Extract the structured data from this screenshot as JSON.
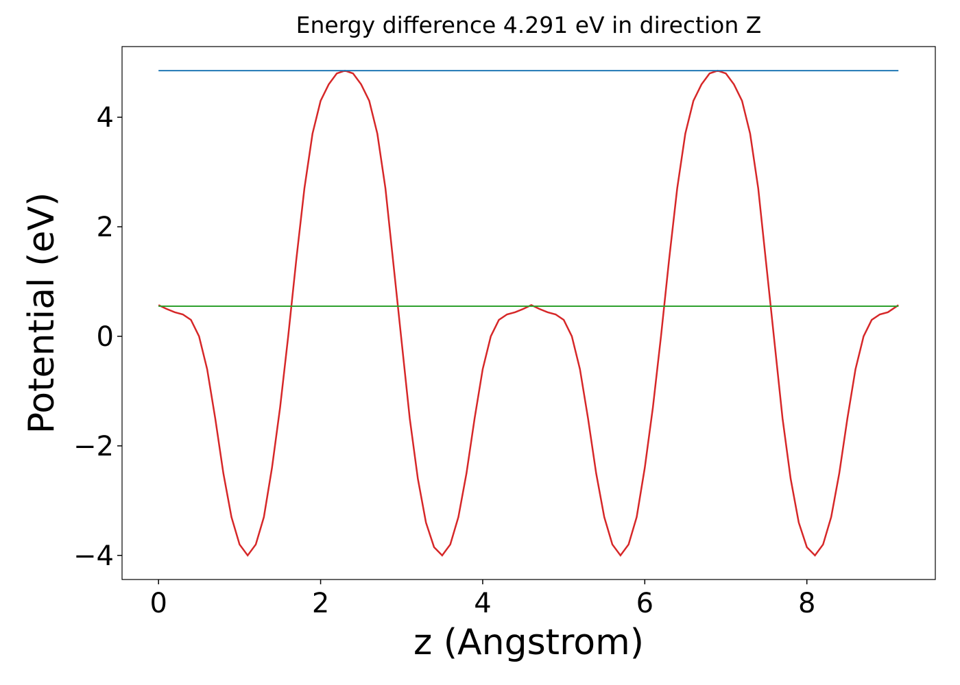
{
  "chart_data": {
    "type": "line",
    "title": "Energy difference 4.291 eV in direction Z",
    "xlabel": "z (Angstrom)",
    "ylabel": "Potential (eV)",
    "xlim": [
      -0.45,
      9.585
    ],
    "ylim": [
      -4.44,
      5.29
    ],
    "xticks": [
      0,
      2,
      4,
      6,
      8
    ],
    "yticks": [
      {
        "value": -4,
        "label": "−4"
      },
      {
        "value": -2,
        "label": "−2"
      },
      0,
      2,
      4
    ],
    "series": [
      {
        "color": "#d62728",
        "x": [
          0,
          0.1,
          0.2,
          0.3,
          0.4,
          0.5,
          0.6,
          0.7,
          0.8,
          0.9,
          1.0,
          1.1,
          1.2,
          1.3,
          1.4,
          1.5,
          1.6,
          1.7,
          1.8,
          1.9,
          2.0,
          2.1,
          2.2,
          2.3,
          2.4,
          2.5,
          2.6,
          2.7,
          2.8,
          2.9,
          3.0,
          3.1,
          3.2,
          3.3,
          3.4,
          3.5,
          3.6,
          3.7,
          3.8,
          3.9,
          4.0,
          4.1,
          4.2,
          4.3,
          4.4,
          4.5,
          4.6,
          4.7,
          4.8,
          4.9,
          5.0,
          5.1,
          5.2,
          5.3,
          5.4,
          5.5,
          5.6,
          5.7,
          5.8,
          5.9,
          6.0,
          6.1,
          6.2,
          6.3,
          6.4,
          6.5,
          6.6,
          6.7,
          6.8,
          6.9,
          7.0,
          7.1,
          7.2,
          7.3,
          7.4,
          7.5,
          7.6,
          7.7,
          7.8,
          7.9,
          8.0,
          8.1,
          8.2,
          8.3,
          8.4,
          8.5,
          8.6,
          8.7,
          8.8,
          8.9,
          9.0,
          9.13
        ],
        "values": [
          0.57,
          0.5,
          0.44,
          0.4,
          0.3,
          0.0,
          -0.6,
          -1.5,
          -2.5,
          -3.3,
          -3.8,
          -4.0,
          -3.8,
          -3.3,
          -2.4,
          -1.3,
          0.0,
          1.4,
          2.7,
          3.7,
          4.3,
          4.6,
          4.8,
          4.85,
          4.8,
          4.6,
          4.3,
          3.7,
          2.7,
          1.3,
          -0.1,
          -1.5,
          -2.6,
          -3.4,
          -3.85,
          -4.0,
          -3.8,
          -3.3,
          -2.5,
          -1.5,
          -0.6,
          0.0,
          0.3,
          0.4,
          0.44,
          0.5,
          0.57,
          0.5,
          0.44,
          0.4,
          0.3,
          0.0,
          -0.6,
          -1.5,
          -2.5,
          -3.3,
          -3.8,
          -4.0,
          -3.8,
          -3.3,
          -2.4,
          -1.3,
          0.0,
          1.4,
          2.7,
          3.7,
          4.3,
          4.6,
          4.8,
          4.85,
          4.8,
          4.6,
          4.3,
          3.7,
          2.7,
          1.3,
          -0.1,
          -1.5,
          -2.6,
          -3.4,
          -3.85,
          -4.0,
          -3.8,
          -3.3,
          -2.5,
          -1.5,
          -0.6,
          0.0,
          0.3,
          0.4,
          0.44,
          0.57
        ]
      },
      {
        "color": "#1f77b4",
        "x": [
          0,
          9.13
        ],
        "values": [
          4.85,
          4.85
        ]
      },
      {
        "color": "#2ca02c",
        "x": [
          0,
          9.13
        ],
        "values": [
          0.55,
          0.55
        ]
      }
    ]
  }
}
